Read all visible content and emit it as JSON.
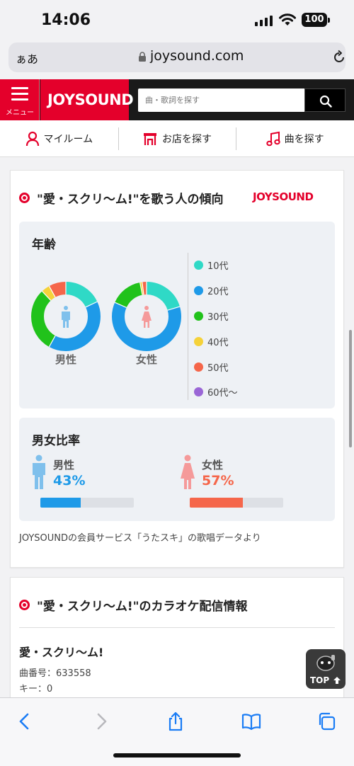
{
  "status_bar": {
    "time": "14:06",
    "battery": "100"
  },
  "browser": {
    "text_size_label": "ぁあ",
    "domain": "joysound.com"
  },
  "site_header": {
    "menu_label": "メニュー",
    "logo_text": "JOYSOUND",
    "search_placeholder": "曲・歌詞を探す",
    "brand_color": "#e4002b"
  },
  "nav": {
    "items": [
      {
        "label": "マイルーム",
        "icon": "user-icon"
      },
      {
        "label": "お店を探す",
        "icon": "store-icon"
      },
      {
        "label": "曲を探す",
        "icon": "music-note-icon"
      }
    ]
  },
  "trend_section": {
    "title": "\"愛・スクリ〜ム!\"を歌う人の傾向",
    "brand_logo": "JOYSOUND",
    "age_panel": {
      "title": "年齢",
      "male_label": "男性",
      "female_label": "女性",
      "legend": [
        {
          "label": "10代",
          "color": "#2fd9c6"
        },
        {
          "label": "20代",
          "color": "#1e9ae8"
        },
        {
          "label": "30代",
          "color": "#21c21b"
        },
        {
          "label": "40代",
          "color": "#f5d23a"
        },
        {
          "label": "50代",
          "color": "#f5664a"
        },
        {
          "label": "60代〜",
          "color": "#9a66d6"
        }
      ]
    },
    "ratio_panel": {
      "title": "男女比率",
      "male": {
        "label": "男性",
        "percent_text": "43%",
        "value": 43,
        "color": "#1e9ae8"
      },
      "female": {
        "label": "女性",
        "percent_text": "57%",
        "value": 57,
        "color": "#f5664a"
      }
    },
    "source_note": "JOYSOUNDの会員サービス「うたスキ」の歌唱データより"
  },
  "chart_data": [
    {
      "type": "pie",
      "title": "男性",
      "categories": [
        "10代",
        "20代",
        "30代",
        "40代",
        "50代",
        "60代〜"
      ],
      "values": [
        18,
        40,
        30,
        4,
        8,
        0
      ]
    },
    {
      "type": "pie",
      "title": "女性",
      "categories": [
        "10代",
        "20代",
        "30代",
        "40代",
        "50代",
        "60代〜"
      ],
      "values": [
        20,
        60,
        15,
        1,
        2,
        0
      ]
    }
  ],
  "karaoke_section": {
    "title": "\"愛・スクリ〜ム!\"のカラオケ配信情報",
    "song_title": "愛・スクリ〜ム!",
    "song_number": "曲番号：633558",
    "key": "キー：0"
  },
  "top_button": {
    "label": "TOP"
  }
}
